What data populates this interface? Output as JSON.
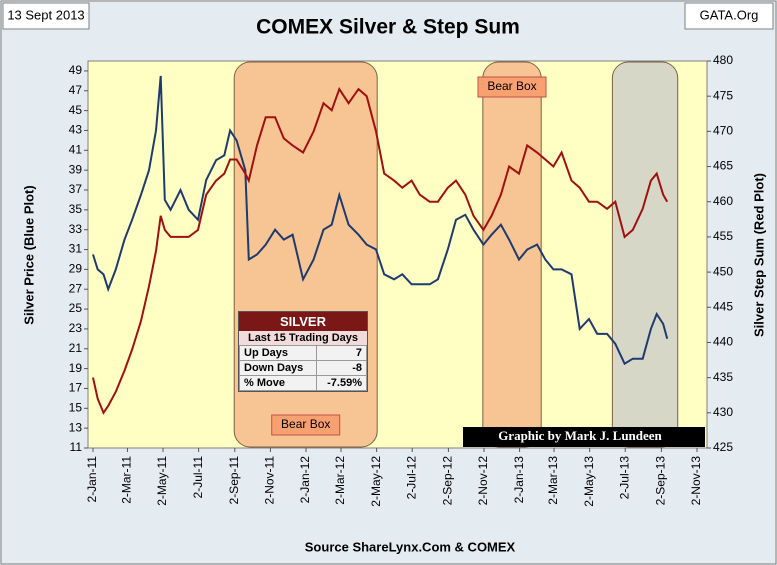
{
  "chart_data": {
    "type": "line",
    "title": "COMEX Silver & Step Sum",
    "date_label": "13 Sept 2013",
    "source_tag": "GATA.Org",
    "ylabel": "Silver Price (Blue Plot)",
    "y2label": "Silver Step Sum (Red Plot)",
    "xlabel": "Source ShareLynx.Com & COMEX",
    "credit": "Graphic by Mark J. Lundeen",
    "x": [
      "2011-01-02",
      "2011-01-10",
      "2011-01-20",
      "2011-01-28",
      "2011-02-10",
      "2011-02-25",
      "2011-03-10",
      "2011-03-25",
      "2011-04-08",
      "2011-04-20",
      "2011-04-28",
      "2011-05-05",
      "2011-05-15",
      "2011-06-01",
      "2011-06-15",
      "2011-07-01",
      "2011-07-15",
      "2011-08-01",
      "2011-08-15",
      "2011-08-25",
      "2011-09-05",
      "2011-09-20",
      "2011-09-26",
      "2011-10-10",
      "2011-10-25",
      "2011-11-10",
      "2011-11-25",
      "2011-12-10",
      "2011-12-28",
      "2012-01-15",
      "2012-02-01",
      "2012-02-15",
      "2012-02-28",
      "2012-03-15",
      "2012-04-01",
      "2012-04-15",
      "2012-05-01",
      "2012-05-15",
      "2012-06-01",
      "2012-06-15",
      "2012-07-01",
      "2012-07-15",
      "2012-08-01",
      "2012-08-15",
      "2012-09-01",
      "2012-09-15",
      "2012-10-01",
      "2012-10-15",
      "2012-11-01",
      "2012-11-15",
      "2012-12-01",
      "2012-12-15",
      "2013-01-01",
      "2013-01-15",
      "2013-02-01",
      "2013-02-15",
      "2013-03-01",
      "2013-03-15",
      "2013-04-01",
      "2013-04-15",
      "2013-05-01",
      "2013-05-15",
      "2013-06-01",
      "2013-06-15",
      "2013-07-01",
      "2013-07-15",
      "2013-08-01",
      "2013-08-15",
      "2013-08-25",
      "2013-09-05",
      "2013-09-12"
    ],
    "series": [
      {
        "name": "Silver Price",
        "color": "#1f3a6e",
        "axis": "y",
        "values": [
          30.5,
          29,
          28.5,
          27,
          29,
          32,
          34,
          36.5,
          39,
          43,
          48.5,
          36,
          35,
          37,
          35,
          34,
          38,
          40,
          40.5,
          43,
          42,
          39,
          30,
          30.5,
          31.5,
          33,
          32,
          32.5,
          28,
          30,
          33,
          33.5,
          36.5,
          33.5,
          32.5,
          31.5,
          31,
          28.5,
          28,
          28.5,
          27.5,
          27.5,
          27.5,
          28,
          31,
          34,
          34.5,
          33,
          31.5,
          32.5,
          33.5,
          32,
          30,
          31,
          31.5,
          30,
          29,
          29,
          28.5,
          23,
          24,
          22.5,
          22.5,
          21.5,
          19.5,
          20,
          20,
          23,
          24.5,
          23.5,
          22
        ]
      },
      {
        "name": "Silver Step Sum",
        "color": "#a01010",
        "axis": "y2",
        "values": [
          435,
          432,
          430,
          431,
          433,
          436,
          439,
          443,
          448,
          453,
          458,
          456,
          455,
          455,
          455,
          456,
          461,
          463,
          464,
          466,
          466,
          464,
          463,
          468,
          472,
          472,
          469,
          468,
          467,
          470,
          474,
          473,
          476,
          474,
          476,
          475,
          470,
          464,
          463,
          462,
          463,
          461,
          460,
          460,
          462,
          463,
          461,
          458,
          456,
          458,
          461,
          465,
          464,
          468,
          467,
          466,
          465,
          467,
          463,
          462,
          460,
          460,
          459,
          460,
          455,
          456,
          459,
          463,
          464,
          461,
          460
        ]
      }
    ],
    "xlim": [
      "2011-01-02",
      "2013-11-02"
    ],
    "xticks": [
      {
        "value": "2011-01-02",
        "label": "2-Jan-11"
      },
      {
        "value": "2011-03-02",
        "label": "2-Mar-11"
      },
      {
        "value": "2011-05-02",
        "label": "2-May-11"
      },
      {
        "value": "2011-07-02",
        "label": "2-Jul-11"
      },
      {
        "value": "2011-09-02",
        "label": "2-Sep-11"
      },
      {
        "value": "2011-11-02",
        "label": "2-Nov-11"
      },
      {
        "value": "2012-01-02",
        "label": "2-Jan-12"
      },
      {
        "value": "2012-03-02",
        "label": "2-Mar-12"
      },
      {
        "value": "2012-05-02",
        "label": "2-May-12"
      },
      {
        "value": "2012-07-02",
        "label": "2-Jul-12"
      },
      {
        "value": "2012-09-02",
        "label": "2-Sep-12"
      },
      {
        "value": "2012-11-02",
        "label": "2-Nov-12"
      },
      {
        "value": "2013-01-02",
        "label": "2-Jan-13"
      },
      {
        "value": "2013-03-02",
        "label": "2-Mar-13"
      },
      {
        "value": "2013-05-02",
        "label": "2-May-13"
      },
      {
        "value": "2013-07-02",
        "label": "2-Jul-13"
      },
      {
        "value": "2013-09-02",
        "label": "2-Sep-13"
      },
      {
        "value": "2013-11-02",
        "label": "2-Nov-13"
      }
    ],
    "ylim": [
      11,
      50
    ],
    "yticks": [
      11,
      13,
      15,
      17,
      19,
      21,
      23,
      25,
      27,
      29,
      31,
      33,
      35,
      37,
      39,
      41,
      43,
      45,
      47,
      49
    ],
    "y2lim": [
      425,
      480
    ],
    "y2ticks": [
      425,
      430,
      435,
      440,
      445,
      450,
      455,
      460,
      465,
      470,
      475,
      480
    ],
    "boxes": [
      {
        "start": "2011-09-01",
        "end": "2012-05-03",
        "color": "#f4b183",
        "label": "Bear Box"
      },
      {
        "start": "2012-10-31",
        "end": "2013-02-08",
        "color": "#f4b183",
        "label": "Bear Box"
      },
      {
        "start": "2013-06-10",
        "end": "2013-09-30",
        "color": "#c9c9c9"
      }
    ],
    "table": {
      "title": "SILVER",
      "subtitle": "Last 15 Trading Days",
      "rows": [
        [
          "Up Days",
          "7"
        ],
        [
          "Down Days",
          "-8"
        ],
        [
          "% Move",
          "-7.59%"
        ]
      ]
    }
  }
}
